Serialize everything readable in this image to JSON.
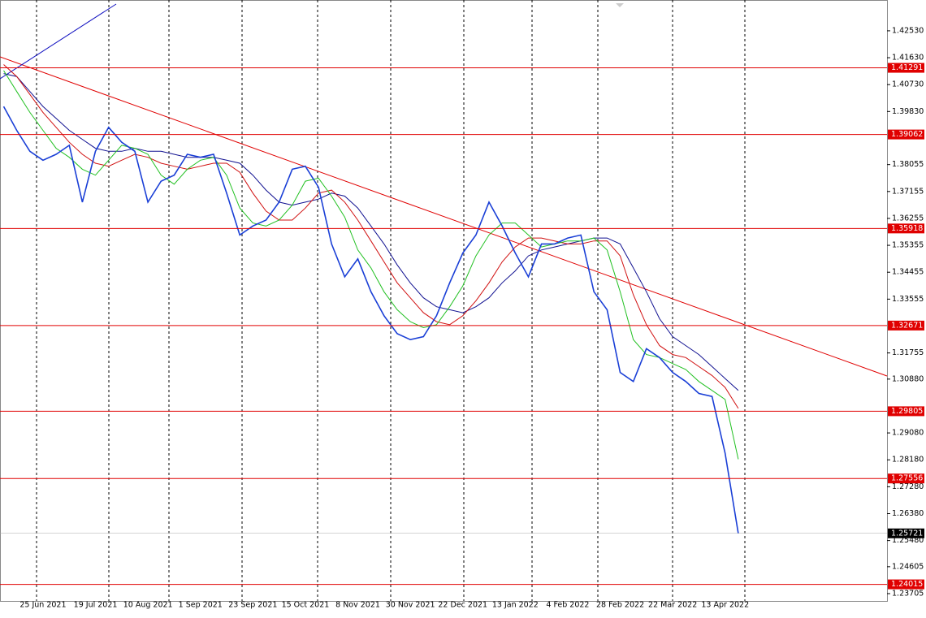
{
  "chart_data": {
    "type": "line",
    "categories": [
      null,
      null,
      null,
      "25 Jun 2021",
      null,
      null,
      null,
      "19 Jul 2021",
      null,
      null,
      null,
      "10 Aug 2021",
      null,
      null,
      null,
      "1 Sep 2021",
      null,
      null,
      null,
      "23 Sep 2021",
      null,
      null,
      null,
      "15 Oct 2021",
      null,
      null,
      null,
      "8 Nov 2021",
      null,
      null,
      null,
      "30 Nov 2021",
      null,
      null,
      null,
      "22 Dec 2021",
      null,
      null,
      null,
      "13 Jan 2022",
      null,
      null,
      null,
      "4 Feb 2022",
      null,
      null,
      null,
      "28 Feb 2022",
      null,
      null,
      null,
      "22 Mar 2022",
      null,
      null,
      null,
      "13 Apr 2022",
      null
    ],
    "series": [
      {
        "color": "#1a3fd6",
        "values": [
          1.4,
          1.392,
          1.385,
          1.382,
          1.384,
          1.387,
          1.368,
          1.385,
          1.393,
          1.388,
          1.385,
          1.368,
          1.375,
          1.377,
          1.384,
          1.383,
          1.384,
          1.371,
          1.357,
          1.36,
          1.362,
          1.368,
          1.379,
          1.38,
          1.373,
          1.354,
          1.343,
          1.349,
          1.338,
          1.33,
          1.324,
          1.322,
          1.323,
          1.33,
          1.341,
          1.351,
          1.357,
          1.368,
          1.36,
          1.351,
          1.343,
          1.354,
          1.354,
          1.356,
          1.357,
          1.338,
          1.332,
          1.311,
          1.308,
          1.319,
          1.316,
          1.311,
          1.308,
          1.304,
          1.303,
          1.284,
          1.2572
        ]
      },
      {
        "color": "#22c022",
        "values": [
          1.412,
          1.405,
          1.398,
          1.392,
          1.386,
          1.383,
          1.379,
          1.377,
          1.382,
          1.387,
          1.386,
          1.384,
          1.377,
          1.374,
          1.379,
          1.382,
          1.383,
          1.377,
          1.366,
          1.361,
          1.36,
          1.362,
          1.367,
          1.375,
          1.376,
          1.37,
          1.363,
          1.352,
          1.346,
          1.338,
          1.332,
          1.328,
          1.326,
          1.327,
          1.333,
          1.34,
          1.35,
          1.357,
          1.361,
          1.361,
          1.357,
          1.353,
          1.354,
          1.355,
          1.355,
          1.356,
          1.352,
          1.338,
          1.322,
          1.317,
          1.316,
          1.314,
          1.312,
          1.308,
          1.305,
          1.302,
          1.282
        ]
      },
      {
        "color": "#d01010",
        "values": [
          1.414,
          1.41,
          1.404,
          1.398,
          1.393,
          1.388,
          1.384,
          1.381,
          1.38,
          1.382,
          1.384,
          1.383,
          1.381,
          1.38,
          1.379,
          1.38,
          1.381,
          1.381,
          1.378,
          1.371,
          1.365,
          1.362,
          1.362,
          1.366,
          1.371,
          1.372,
          1.368,
          1.362,
          1.355,
          1.348,
          1.341,
          1.336,
          1.331,
          1.328,
          1.327,
          1.33,
          1.335,
          1.341,
          1.348,
          1.353,
          1.356,
          1.356,
          1.355,
          1.354,
          1.354,
          1.355,
          1.355,
          1.35,
          1.337,
          1.327,
          1.32,
          1.317,
          1.316,
          1.313,
          1.31,
          1.306,
          1.299
        ]
      },
      {
        "color": "#101090",
        "values": [
          1.411,
          1.41,
          1.405,
          1.4,
          1.396,
          1.392,
          1.389,
          1.386,
          1.385,
          1.385,
          1.386,
          1.385,
          1.385,
          1.384,
          1.383,
          1.383,
          1.383,
          1.382,
          1.381,
          1.377,
          1.372,
          1.368,
          1.367,
          1.368,
          1.369,
          1.371,
          1.37,
          1.366,
          1.36,
          1.354,
          1.347,
          1.341,
          1.336,
          1.333,
          1.332,
          1.331,
          1.333,
          1.336,
          1.341,
          1.345,
          1.35,
          1.352,
          1.353,
          1.354,
          1.355,
          1.356,
          1.356,
          1.354,
          1.346,
          1.338,
          1.329,
          1.323,
          1.32,
          1.317,
          1.313,
          1.309,
          1.305
        ]
      }
    ],
    "ylim": [
      1.2346,
      1.4356
    ],
    "yticks": [
      {
        "value": 1.4253,
        "label": "1.42530"
      },
      {
        "value": 1.4163,
        "label": "1.41630"
      },
      {
        "value": 1.4073,
        "label": "1.40730"
      },
      {
        "value": 1.3983,
        "label": "1.39830"
      },
      {
        "value": 1.38055,
        "label": "1.38055"
      },
      {
        "value": 1.37155,
        "label": "1.37155"
      },
      {
        "value": 1.36255,
        "label": "1.36255"
      },
      {
        "value": 1.35355,
        "label": "1.35355"
      },
      {
        "value": 1.34455,
        "label": "1.34455"
      },
      {
        "value": 1.33555,
        "label": "1.33555"
      },
      {
        "value": 1.31755,
        "label": "1.31755"
      },
      {
        "value": 1.3088,
        "label": "1.30880"
      },
      {
        "value": 1.2908,
        "label": "1.29080"
      },
      {
        "value": 1.2818,
        "label": "1.28180"
      },
      {
        "value": 1.2728,
        "label": "1.27280"
      },
      {
        "value": 1.2638,
        "label": "1.26380"
      },
      {
        "value": 1.2548,
        "label": "1.25480"
      },
      {
        "value": 1.24605,
        "label": "1.24605"
      },
      {
        "value": 1.23705,
        "label": "1.23705"
      }
    ],
    "levels": [
      1.41291,
      1.39062,
      1.35918,
      1.32671,
      1.29805,
      1.27556,
      1.24015
    ],
    "level_color": "#e00000",
    "current_price": 1.25721
  }
}
